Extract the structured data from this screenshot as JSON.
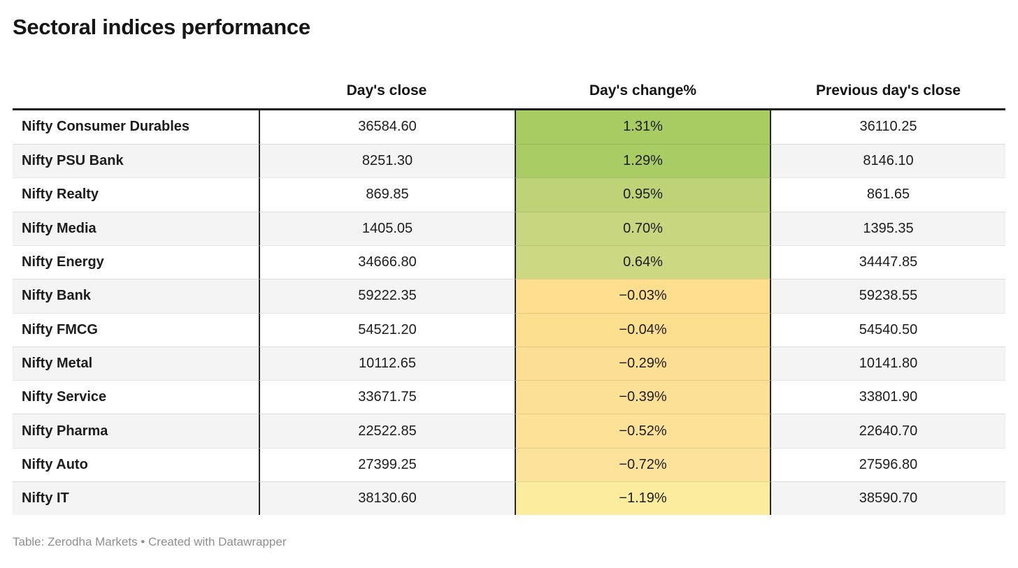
{
  "title": "Sectoral indices performance",
  "table": {
    "columns": [
      "",
      "Day's close",
      "Day's change%",
      "Previous day's close"
    ],
    "rows": [
      {
        "name": "Nifty Consumer Durables",
        "close": "36584.60",
        "change": "1.31%",
        "prev": "36110.25",
        "change_bg": "#a8cc62"
      },
      {
        "name": "Nifty PSU Bank",
        "close": "8251.30",
        "change": "1.29%",
        "prev": "8146.10",
        "change_bg": "#a9cc64"
      },
      {
        "name": "Nifty Realty",
        "close": "869.85",
        "change": "0.95%",
        "prev": "861.65",
        "change_bg": "#bed376"
      },
      {
        "name": "Nifty Media",
        "close": "1405.05",
        "change": "0.70%",
        "prev": "1395.35",
        "change_bg": "#c8d67f"
      },
      {
        "name": "Nifty Energy",
        "close": "34666.80",
        "change": "0.64%",
        "prev": "34447.85",
        "change_bg": "#ccd882"
      },
      {
        "name": "Nifty Bank",
        "close": "59222.35",
        "change": "−0.03%",
        "prev": "59238.55",
        "change_bg": "#fcde8e"
      },
      {
        "name": "Nifty FMCG",
        "close": "54521.20",
        "change": "−0.04%",
        "prev": "54540.50",
        "change_bg": "#fcde8f"
      },
      {
        "name": "Nifty Metal",
        "close": "10112.65",
        "change": "−0.29%",
        "prev": "10141.80",
        "change_bg": "#fcdf92"
      },
      {
        "name": "Nifty Service",
        "close": "33671.75",
        "change": "−0.39%",
        "prev": "33801.90",
        "change_bg": "#fce095"
      },
      {
        "name": "Nifty Pharma",
        "close": "22522.85",
        "change": "−0.52%",
        "prev": "22640.70",
        "change_bg": "#fce197"
      },
      {
        "name": "Nifty Auto",
        "close": "27399.25",
        "change": "−0.72%",
        "prev": "27596.80",
        "change_bg": "#fce29a"
      },
      {
        "name": "Nifty IT",
        "close": "38130.60",
        "change": "−1.19%",
        "prev": "38590.70",
        "change_bg": "#fcec9d"
      }
    ]
  },
  "footer": {
    "byline": "Table: Zerodha Markets",
    "separator": " • ",
    "credit": "Created with Datawrapper"
  },
  "colors": {
    "positive_high": "#a8cc62",
    "positive_low": "#ccd882",
    "negative_high": "#fcde8e",
    "negative_low": "#fcec9d",
    "stripe": "#f4f4f4",
    "border_dark": "#272727",
    "top_rule": "#1a1a1a",
    "footer_text": "#8f8f8f"
  },
  "chart_data": {
    "type": "table",
    "title": "Sectoral indices performance",
    "columns": [
      "",
      "Day's close",
      "Day's change%",
      "Previous day's close"
    ],
    "heatmap_column": "Day's change%",
    "rows": [
      [
        "Nifty Consumer Durables",
        36584.6,
        1.31,
        36110.25
      ],
      [
        "Nifty PSU Bank",
        8251.3,
        1.29,
        8146.1
      ],
      [
        "Nifty Realty",
        869.85,
        0.95,
        861.65
      ],
      [
        "Nifty Media",
        1405.05,
        0.7,
        1395.35
      ],
      [
        "Nifty Energy",
        34666.8,
        0.64,
        34447.85
      ],
      [
        "Nifty Bank",
        59222.35,
        -0.03,
        59238.55
      ],
      [
        "Nifty FMCG",
        54521.2,
        -0.04,
        54540.5
      ],
      [
        "Nifty Metal",
        10112.65,
        -0.29,
        10141.8
      ],
      [
        "Nifty Service",
        33671.75,
        -0.39,
        33801.9
      ],
      [
        "Nifty Pharma",
        22522.85,
        -0.52,
        22640.7
      ],
      [
        "Nifty Auto",
        27399.25,
        -0.72,
        27596.8
      ],
      [
        "Nifty IT",
        38130.6,
        -1.19,
        38590.7
      ]
    ],
    "source": "Table: Zerodha Markets",
    "credit": "Created with Datawrapper"
  }
}
